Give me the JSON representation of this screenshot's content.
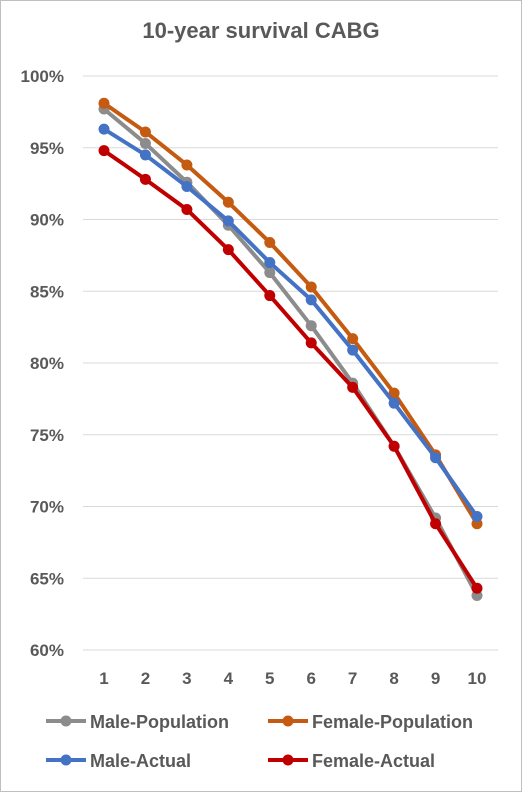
{
  "chart_data": {
    "type": "line",
    "title": "10-year survival CABG",
    "xlabel": "",
    "ylabel": "",
    "x": [
      1,
      2,
      3,
      4,
      5,
      6,
      7,
      8,
      9,
      10
    ],
    "x_tick_labels": [
      "1",
      "2",
      "3",
      "4",
      "5",
      "6",
      "7",
      "8",
      "9",
      "10"
    ],
    "ylim": [
      0.6,
      1.0
    ],
    "y_tick_labels": [
      "60%",
      "65%",
      "70%",
      "75%",
      "80%",
      "85%",
      "90%",
      "95%",
      "100%"
    ],
    "grid": "horizontal",
    "legend_position": "bottom",
    "series": [
      {
        "name": "Male-Population",
        "color": "#8c8c8c",
        "values": [
          0.977,
          0.953,
          0.926,
          0.896,
          0.863,
          0.826,
          0.786,
          0.742,
          0.692,
          0.638
        ]
      },
      {
        "name": "Female-Population",
        "color": "#c55a11",
        "values": [
          0.981,
          0.961,
          0.938,
          0.912,
          0.884,
          0.853,
          0.817,
          0.779,
          0.736,
          0.688
        ]
      },
      {
        "name": "Male-Actual",
        "color": "#4472c4",
        "values": [
          0.963,
          0.945,
          0.923,
          0.899,
          0.87,
          0.844,
          0.809,
          0.772,
          0.734,
          0.693
        ]
      },
      {
        "name": "Female-Actual",
        "color": "#c00000",
        "values": [
          0.948,
          0.928,
          0.907,
          0.879,
          0.847,
          0.814,
          0.783,
          0.742,
          0.688,
          0.643
        ]
      }
    ]
  }
}
